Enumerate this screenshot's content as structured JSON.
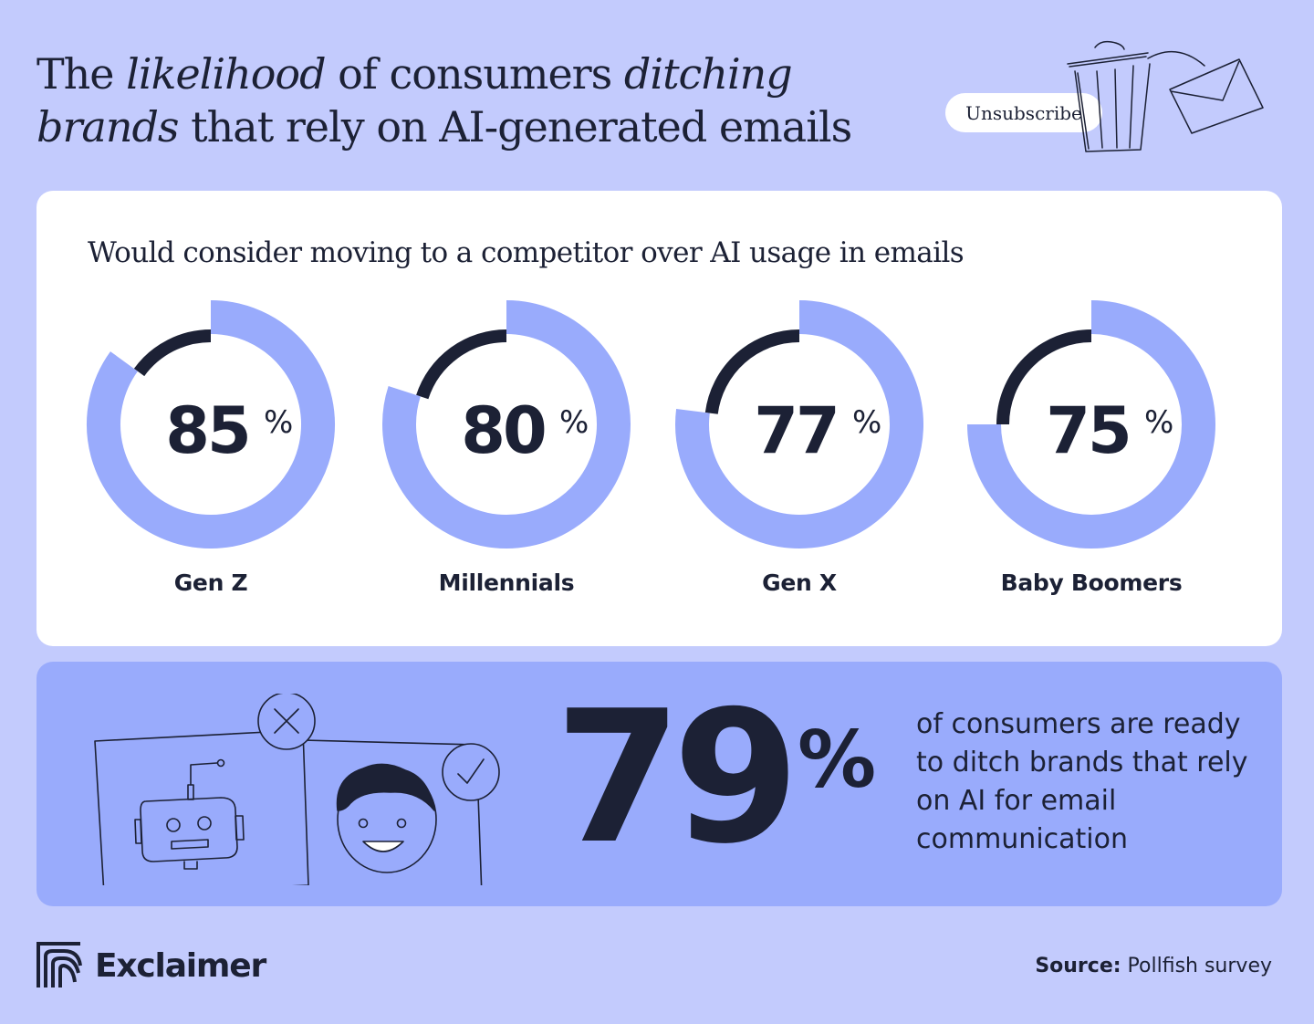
{
  "header": {
    "title_line1": [
      {
        "text": "The ",
        "italic": false
      },
      {
        "text": "likelihood",
        "italic": true
      },
      {
        "text": " of consumers ",
        "italic": false
      },
      {
        "text": "ditching",
        "italic": true
      }
    ],
    "title_line2": [
      {
        "text": "brands",
        "italic": true
      },
      {
        "text": " that rely on AI-generated emails",
        "italic": false
      }
    ],
    "unsubscribe_label": "Unsubscribe",
    "trash_icon": "trash-can-icon",
    "envelope_icon": "envelope-icon"
  },
  "colors": {
    "background": "#c3cbfd",
    "ring_fill": "#99abfc",
    "ring_remainder": "#1c2135",
    "text": "#1c2135",
    "card": "#ffffff",
    "panel": "#99abfc"
  },
  "chart_data": {
    "type": "donut",
    "title": "Would consider moving to a competitor over AI usage in emails",
    "categories": [
      "Gen Z",
      "Millennials",
      "Gen X",
      "Baby Boomers"
    ],
    "values": [
      85,
      80,
      77,
      75
    ],
    "value_suffix": "%",
    "range": [
      0,
      100
    ]
  },
  "highlight": {
    "value": "79",
    "suffix": "%",
    "description": "of consumers are ready to ditch brands that rely on AI for email communication",
    "robot_icon": "robot-icon",
    "cross_icon": "cross-circle-icon",
    "person_icon": "person-face-icon",
    "check_icon": "check-circle-icon"
  },
  "footer": {
    "brand": "Exclaimer",
    "source_label": "Source:",
    "source_value": "Pollfish survey"
  }
}
